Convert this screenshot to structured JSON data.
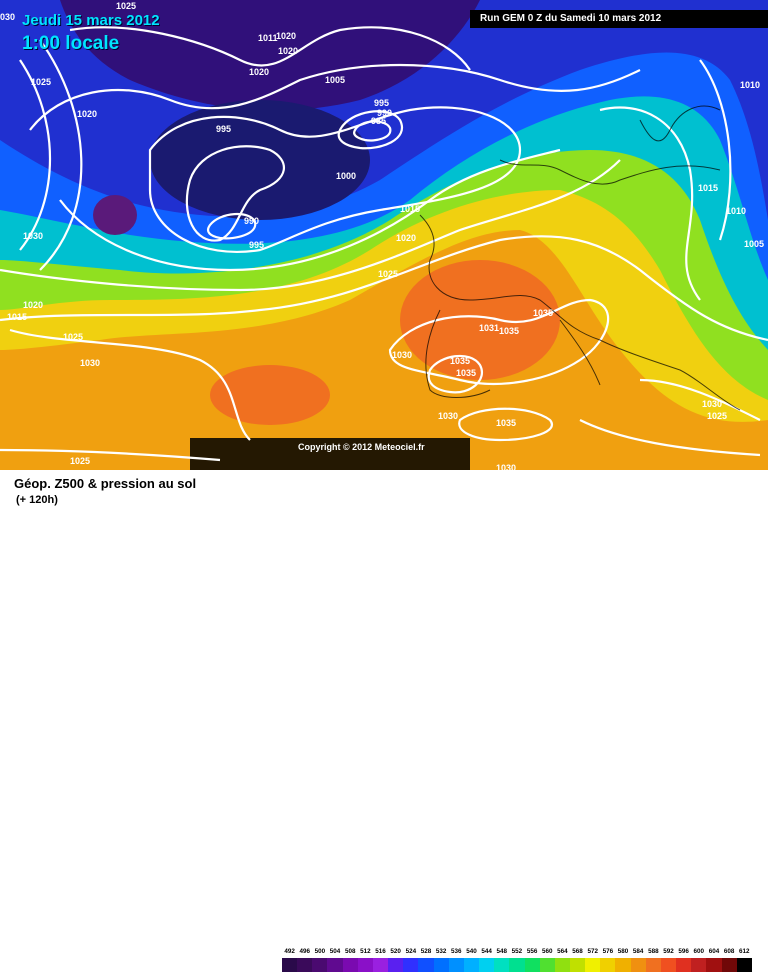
{
  "header": {
    "date_label": "Jeudi 15 mars 2012",
    "time_label": "1:00 locale",
    "run_label": "Run GEM 0 Z du Samedi 10 mars 2012"
  },
  "map": {
    "copyright": "Copyright © 2012 Meteociel.fr",
    "pressure_labels": [
      "030",
      "1025",
      "1011",
      "1020",
      "1025",
      "1020",
      "1020",
      "1005",
      "995",
      "990",
      "985",
      "995",
      "1020",
      "1000",
      "990",
      "995",
      "1015",
      "1020",
      "1030",
      "1025",
      "1010",
      "1015",
      "1010",
      "1005",
      "1020",
      "1015",
      "1025",
      "1030",
      "1031",
      "1035",
      "1035",
      "1030",
      "1035",
      "1035",
      "1030",
      "1035",
      "1030",
      "1025",
      "1025",
      "1030"
    ],
    "colors": {
      "low": "#2a0a4a",
      "mid": "#1040f0",
      "high": "#f09010"
    }
  },
  "footer": {
    "title": "Géop. Z500 & pression au sol",
    "subtitle": "(+ 120h)",
    "scale_values": [
      "492",
      "496",
      "500",
      "504",
      "508",
      "512",
      "516",
      "520",
      "524",
      "528",
      "532",
      "536",
      "540",
      "544",
      "548",
      "552",
      "556",
      "560",
      "564",
      "568",
      "572",
      "576",
      "580",
      "584",
      "588",
      "592",
      "596",
      "600",
      "604",
      "608",
      "612"
    ],
    "scale_colors": [
      "#2a0a4a",
      "#3a0a5a",
      "#4a0a70",
      "#600a90",
      "#7a0ab0",
      "#8a10c8",
      "#9a20e0",
      "#5a20f0",
      "#3030ff",
      "#1050ff",
      "#0070ff",
      "#0090ff",
      "#00b0ff",
      "#00d0f0",
      "#00e0c0",
      "#00e090",
      "#10e060",
      "#50e030",
      "#90e010",
      "#c0e000",
      "#f0f000",
      "#f0d000",
      "#f0b000",
      "#f09010",
      "#f07020",
      "#f05020",
      "#e03020",
      "#c02020",
      "#a01010",
      "#700808",
      "#000000"
    ]
  }
}
